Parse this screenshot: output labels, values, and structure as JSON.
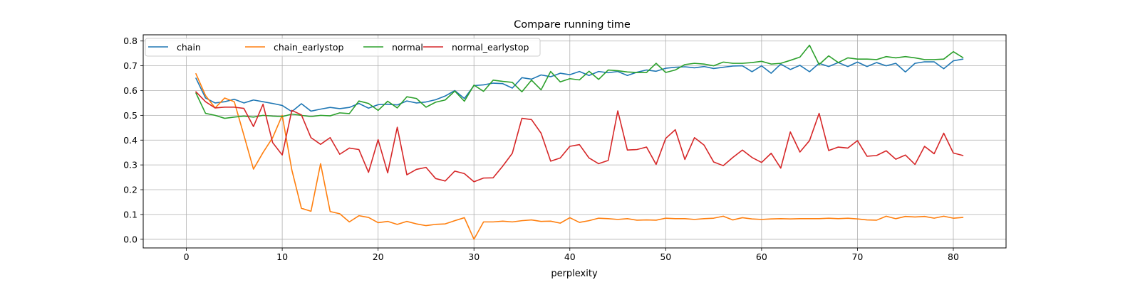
{
  "chart_data": {
    "type": "line",
    "title": "Compare running time",
    "xlabel": "perplexity",
    "ylabel": "",
    "xlim": [
      -4.5,
      85.5
    ],
    "ylim": [
      -0.035,
      0.825
    ],
    "xticks": [
      0,
      10,
      20,
      30,
      40,
      50,
      60,
      70,
      80
    ],
    "yticks": [
      0.0,
      0.1,
      0.2,
      0.3,
      0.4,
      0.5,
      0.6,
      0.7,
      0.8
    ],
    "ytick_labels": [
      "0.0",
      "0.1",
      "0.2",
      "0.3",
      "0.4",
      "0.5",
      "0.6",
      "0.7",
      "0.8"
    ],
    "grid": true,
    "legend_position": "top-left",
    "x_start": 1,
    "series": [
      {
        "name": "chain",
        "color": "#1f77b4",
        "values": [
          0.65,
          0.57,
          0.55,
          0.555,
          0.565,
          0.55,
          0.562,
          0.555,
          0.548,
          0.54,
          0.515,
          0.547,
          0.517,
          0.525,
          0.532,
          0.527,
          0.532,
          0.548,
          0.529,
          0.543,
          0.545,
          0.542,
          0.558,
          0.55,
          0.554,
          0.563,
          0.578,
          0.6,
          0.568,
          0.62,
          0.623,
          0.63,
          0.628,
          0.61,
          0.652,
          0.646,
          0.663,
          0.656,
          0.67,
          0.664,
          0.677,
          0.661,
          0.677,
          0.672,
          0.677,
          0.661,
          0.674,
          0.683,
          0.678,
          0.69,
          0.694,
          0.696,
          0.692,
          0.697,
          0.689,
          0.694,
          0.699,
          0.7,
          0.676,
          0.7,
          0.67,
          0.707,
          0.685,
          0.702,
          0.676,
          0.71,
          0.697,
          0.713,
          0.697,
          0.715,
          0.697,
          0.713,
          0.7,
          0.71,
          0.675,
          0.71,
          0.716,
          0.716,
          0.688,
          0.72,
          0.727
        ]
      },
      {
        "name": "chain_earlystop",
        "color": "#ff7f0e",
        "values": [
          0.668,
          0.58,
          0.53,
          0.57,
          0.555,
          0.42,
          0.283,
          0.35,
          0.41,
          0.5,
          0.28,
          0.125,
          0.113,
          0.305,
          0.112,
          0.103,
          0.07,
          0.095,
          0.088,
          0.067,
          0.072,
          0.06,
          0.072,
          0.062,
          0.055,
          0.06,
          0.062,
          0.075,
          0.087,
          0.0,
          0.07,
          0.07,
          0.073,
          0.07,
          0.075,
          0.078,
          0.072,
          0.073,
          0.065,
          0.087,
          0.068,
          0.075,
          0.085,
          0.083,
          0.08,
          0.083,
          0.077,
          0.078,
          0.077,
          0.085,
          0.083,
          0.083,
          0.08,
          0.083,
          0.085,
          0.093,
          0.078,
          0.087,
          0.082,
          0.08,
          0.082,
          0.083,
          0.082,
          0.083,
          0.083,
          0.083,
          0.085,
          0.083,
          0.085,
          0.082,
          0.078,
          0.077,
          0.093,
          0.083,
          0.092,
          0.09,
          0.092,
          0.085,
          0.093,
          0.085,
          0.088
        ]
      },
      {
        "name": "normal",
        "color": "#2ca02c",
        "values": [
          0.59,
          0.508,
          0.5,
          0.488,
          0.493,
          0.497,
          0.493,
          0.5,
          0.497,
          0.495,
          0.505,
          0.5,
          0.495,
          0.5,
          0.498,
          0.51,
          0.507,
          0.558,
          0.548,
          0.52,
          0.557,
          0.53,
          0.575,
          0.568,
          0.533,
          0.553,
          0.562,
          0.598,
          0.557,
          0.622,
          0.597,
          0.642,
          0.637,
          0.633,
          0.595,
          0.642,
          0.603,
          0.677,
          0.635,
          0.648,
          0.643,
          0.678,
          0.645,
          0.683,
          0.68,
          0.675,
          0.673,
          0.673,
          0.71,
          0.673,
          0.683,
          0.705,
          0.71,
          0.707,
          0.7,
          0.715,
          0.71,
          0.71,
          0.713,
          0.718,
          0.707,
          0.71,
          0.722,
          0.735,
          0.783,
          0.705,
          0.74,
          0.713,
          0.732,
          0.727,
          0.727,
          0.725,
          0.737,
          0.732,
          0.737,
          0.732,
          0.725,
          0.725,
          0.727,
          0.757,
          0.733
        ]
      },
      {
        "name": "normal_earlystop",
        "color": "#d62728",
        "values": [
          0.595,
          0.555,
          0.53,
          0.533,
          0.533,
          0.528,
          0.455,
          0.545,
          0.39,
          0.34,
          0.52,
          0.502,
          0.41,
          0.383,
          0.41,
          0.343,
          0.368,
          0.362,
          0.27,
          0.402,
          0.268,
          0.452,
          0.26,
          0.282,
          0.29,
          0.245,
          0.235,
          0.275,
          0.265,
          0.232,
          0.247,
          0.248,
          0.295,
          0.347,
          0.488,
          0.483,
          0.428,
          0.315,
          0.328,
          0.375,
          0.382,
          0.328,
          0.305,
          0.318,
          0.518,
          0.36,
          0.362,
          0.372,
          0.302,
          0.407,
          0.442,
          0.322,
          0.41,
          0.38,
          0.312,
          0.297,
          0.33,
          0.36,
          0.33,
          0.31,
          0.347,
          0.287,
          0.433,
          0.352,
          0.398,
          0.508,
          0.358,
          0.372,
          0.368,
          0.398,
          0.335,
          0.338,
          0.357,
          0.323,
          0.34,
          0.302,
          0.375,
          0.345,
          0.428,
          0.348,
          0.338
        ]
      }
    ]
  }
}
